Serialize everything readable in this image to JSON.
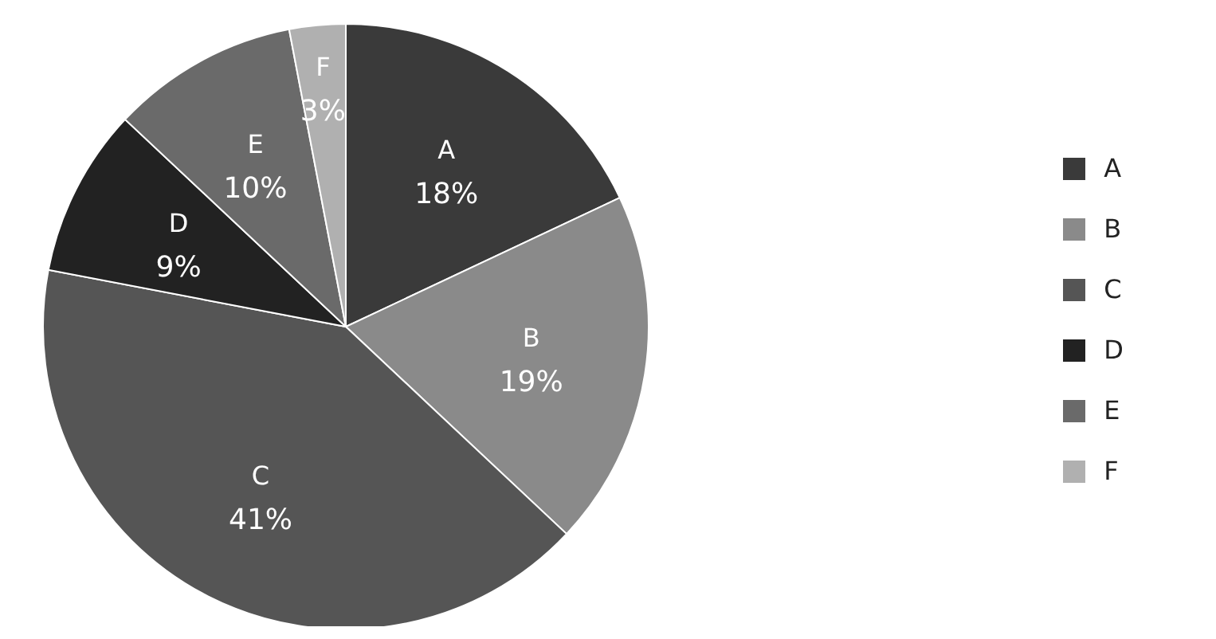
{
  "chart_data": {
    "type": "pie",
    "categories": [
      "A",
      "B",
      "C",
      "D",
      "E",
      "F"
    ],
    "values": [
      18,
      19,
      41,
      9,
      10,
      3
    ],
    "value_labels": [
      "18%",
      "19%",
      "41%",
      "9%",
      "10%",
      "3%"
    ],
    "colors": [
      "#3a3a3a",
      "#8a8a8a",
      "#555555",
      "#222222",
      "#6a6a6a",
      "#b0b0b0"
    ],
    "legend": "right"
  }
}
